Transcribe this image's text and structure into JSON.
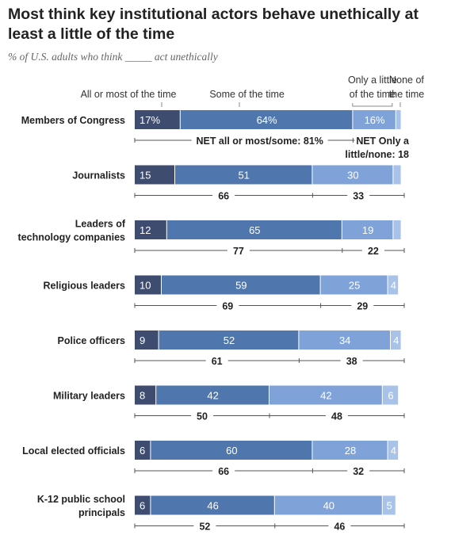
{
  "title": "Most think key institutional actors behave unethically at least a little of the time",
  "subtitle": "% of U.S. adults who think _____ act unethically",
  "chart_data": {
    "type": "bar",
    "stacked": true,
    "orientation": "horizontal",
    "column_headers": [
      [
        "All or most of the time"
      ],
      [
        "Some of the time"
      ],
      [
        "Only a little",
        "of the time"
      ],
      [
        "None of",
        "the time"
      ]
    ],
    "colors": [
      "#3e4d6f",
      "#4f77ad",
      "#7fa3d9",
      "#a9c3e8"
    ],
    "net_line_color": "#555555",
    "net_labels": {
      "first_left": "NET all or most/some: 81%",
      "first_right": [
        "NET Only a",
        "little/none: 18"
      ]
    },
    "categories": [
      [
        "Members of Congress"
      ],
      [
        "Journalists"
      ],
      [
        "Leaders of",
        "technology companies"
      ],
      [
        "Religious leaders"
      ],
      [
        "Police officers"
      ],
      [
        "Military leaders"
      ],
      [
        "Local elected officials"
      ],
      [
        "K-12 public school",
        "principals"
      ]
    ],
    "series": [
      {
        "name": "All or most of the time",
        "values": [
          17,
          15,
          12,
          10,
          9,
          8,
          6,
          6
        ],
        "labels": [
          "17%",
          "15",
          "12",
          "10",
          "9",
          "8",
          "6",
          "6"
        ]
      },
      {
        "name": "Some of the time",
        "values": [
          64,
          51,
          65,
          59,
          52,
          42,
          60,
          46
        ],
        "labels": [
          "64%",
          "51",
          "65",
          "59",
          "52",
          "42",
          "60",
          "46"
        ]
      },
      {
        "name": "Only a little of the time",
        "values": [
          16,
          30,
          19,
          25,
          34,
          42,
          28,
          40
        ],
        "labels": [
          "16%",
          "30",
          "19",
          "25",
          "34",
          "42",
          "28",
          "40"
        ]
      },
      {
        "name": "None of the time",
        "values": [
          2,
          3,
          3,
          4,
          4,
          6,
          4,
          5
        ],
        "labels": [
          "",
          "",
          "",
          "4",
          "4",
          "6",
          "4",
          "5"
        ]
      }
    ],
    "net_left": [
      "81",
      "66",
      "77",
      "69",
      "61",
      "50",
      "66",
      "52"
    ],
    "net_right": [
      "18",
      "33",
      "22",
      "29",
      "38",
      "48",
      "32",
      "46"
    ],
    "xlim": [
      0,
      100
    ]
  }
}
